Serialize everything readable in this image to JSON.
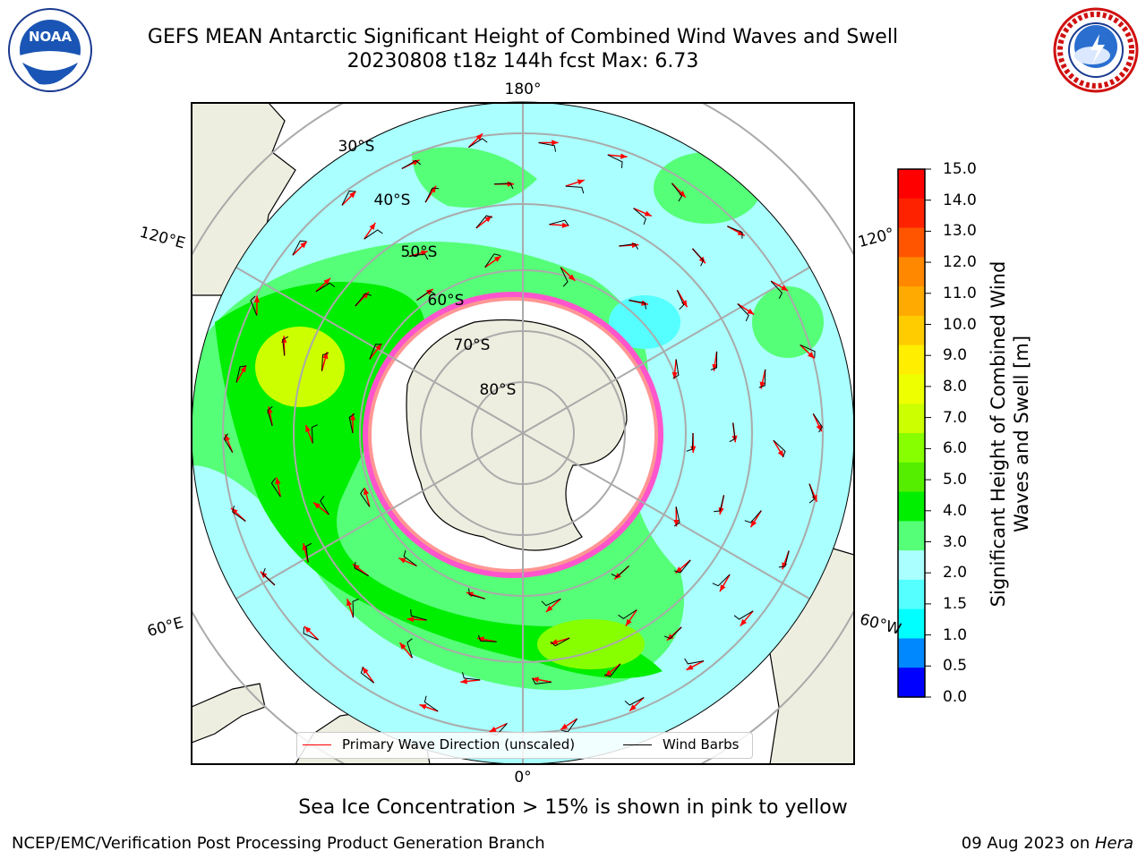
{
  "header": {
    "title_line1": "GEFS MEAN Antarctic Significant Height of Combined Wind Waves and Swell",
    "title_line2": "20230808 t18z 144h fcst   Max: 6.73"
  },
  "map": {
    "longitude_labels": {
      "top": "180°",
      "bottom": "0°",
      "left_upper": "120°E",
      "left_lower": "60°E",
      "right_upper": "120°",
      "right_lower": "60°W"
    },
    "latitude_labels": [
      "30°S",
      "40°S",
      "50°S",
      "60°S",
      "70°S",
      "80°S"
    ]
  },
  "legend": {
    "primary_wave_label": "Primary Wave Direction (unscaled)",
    "wind_barbs_label": "Wind Barbs",
    "primary_wave_color": "#ff0000",
    "wind_barb_color": "#000000"
  },
  "colorbar": {
    "label": "Significant Height of Combined Wind Waves and Swell [m]",
    "ticks": [
      "15.0",
      "14.0",
      "13.0",
      "12.0",
      "11.0",
      "10.0",
      "9.0",
      "8.0",
      "7.0",
      "6.0",
      "5.0",
      "4.0",
      "3.0",
      "2.0",
      "1.5",
      "1.0",
      "0.5",
      "0.0"
    ],
    "colors": [
      "#ff0000",
      "#ff2200",
      "#ff5500",
      "#ff8800",
      "#ffaa00",
      "#ffcc00",
      "#ffee00",
      "#eeff00",
      "#ccff00",
      "#88ff00",
      "#55ee00",
      "#00ee00",
      "#55ff77",
      "#aaffff",
      "#55ffff",
      "#00ffff",
      "#0088ff",
      "#0000ff"
    ]
  },
  "footnote": "Sea Ice Concentration > 15% is shown in pink to yellow",
  "credit_left": "NCEP/EMC/Verification Post Processing Product Generation Branch",
  "credit_right": {
    "date": "09 Aug 2023 on ",
    "host": "Hera"
  },
  "colors": {
    "land": "#eeeee0",
    "ice": "#ff55cc",
    "ocean_low": "#aaffff",
    "ocean_mid": "#55ff77",
    "ocean_high": "#00ee00",
    "ocean_peak": "#ccff00"
  }
}
